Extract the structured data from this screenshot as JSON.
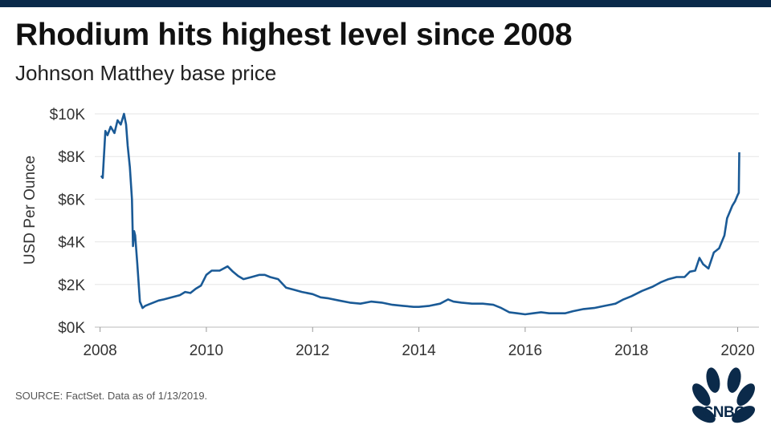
{
  "header": {
    "title": "Rhodium hits highest level since 2008",
    "subtitle": "Johnson Matthey base price"
  },
  "footer": {
    "source": "SOURCE: FactSet. Data as of 1/13/2019.",
    "logo_text": "CNBC"
  },
  "colors": {
    "line": "#1a5a96",
    "grid": "#e6e6e6",
    "topbar": "#0b2a4a"
  },
  "chart_data": {
    "type": "line",
    "title": "Rhodium hits highest level since 2008",
    "subtitle": "Johnson Matthey base price",
    "xlabel": "",
    "ylabel": "USD Per Ounce",
    "xlim": [
      2007.9,
      2020.4
    ],
    "ylim": [
      0,
      10000
    ],
    "grid": true,
    "x_ticks": [
      2008,
      2010,
      2012,
      2014,
      2016,
      2018,
      2020
    ],
    "x_tick_labels": [
      "2008",
      "2010",
      "2012",
      "2014",
      "2016",
      "2018",
      "2020"
    ],
    "y_ticks": [
      0,
      2000,
      4000,
      6000,
      8000,
      10000
    ],
    "y_tick_labels": [
      "$0K",
      "$2K",
      "$4K",
      "$6K",
      "$8K",
      "$10K"
    ],
    "series": [
      {
        "x": [
          2008.02,
          2008.05,
          2008.1,
          2008.14,
          2008.2,
          2008.27,
          2008.33,
          2008.39,
          2008.45,
          2008.49,
          2008.52,
          2008.56,
          2008.6,
          2008.62,
          2008.64,
          2008.66,
          2008.7,
          2008.75,
          2008.8,
          2008.85,
          2008.9,
          2009.0,
          2009.1,
          2009.2,
          2009.35,
          2009.5,
          2009.6,
          2009.7,
          2009.8,
          2009.9,
          2010.0,
          2010.1,
          2010.25,
          2010.4,
          2010.5,
          2010.6,
          2010.7,
          2010.85,
          2011.0,
          2011.1,
          2011.2,
          2011.35,
          2011.5,
          2011.65,
          2011.8,
          2012.0,
          2012.15,
          2012.3,
          2012.5,
          2012.7,
          2012.9,
          2013.1,
          2013.3,
          2013.5,
          2013.7,
          2013.9,
          2014.0,
          2014.2,
          2014.4,
          2014.55,
          2014.65,
          2014.8,
          2015.0,
          2015.2,
          2015.4,
          2015.55,
          2015.7,
          2015.85,
          2016.0,
          2016.15,
          2016.3,
          2016.45,
          2016.6,
          2016.75,
          2016.9,
          2017.1,
          2017.3,
          2017.5,
          2017.7,
          2017.85,
          2018.0,
          2018.2,
          2018.4,
          2018.55,
          2018.7,
          2018.85,
          2019.0,
          2019.1,
          2019.2,
          2019.28,
          2019.35,
          2019.45,
          2019.55,
          2019.65,
          2019.75,
          2019.8,
          2019.85,
          2019.9,
          2019.95,
          2020.0,
          2020.02,
          2020.03
        ],
        "values": [
          7100,
          7000,
          9200,
          9000,
          9400,
          9100,
          9700,
          9500,
          10000,
          9500,
          8500,
          7500,
          6000,
          3800,
          4500,
          4300,
          3000,
          1200,
          900,
          1000,
          1050,
          1150,
          1250,
          1300,
          1400,
          1500,
          1650,
          1600,
          1800,
          1950,
          2450,
          2650,
          2650,
          2850,
          2600,
          2400,
          2250,
          2350,
          2450,
          2450,
          2350,
          2250,
          1850,
          1750,
          1650,
          1550,
          1400,
          1350,
          1250,
          1150,
          1100,
          1200,
          1150,
          1050,
          1000,
          950,
          950,
          1000,
          1100,
          1300,
          1200,
          1150,
          1100,
          1100,
          1050,
          900,
          700,
          650,
          600,
          650,
          700,
          650,
          650,
          650,
          750,
          850,
          900,
          1000,
          1100,
          1300,
          1450,
          1700,
          1900,
          2100,
          2250,
          2350,
          2350,
          2600,
          2650,
          3250,
          2950,
          2750,
          3500,
          3700,
          4300,
          5100,
          5400,
          5700,
          5900,
          6200,
          6300,
          8200
        ]
      }
    ]
  }
}
